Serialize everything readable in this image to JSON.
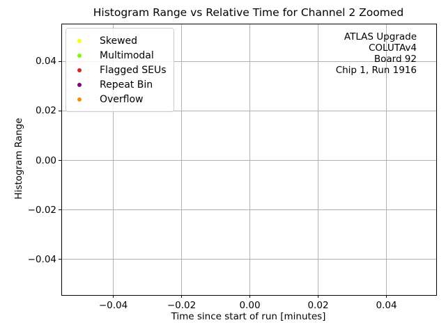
{
  "figure": {
    "title": "Histogram Range vs Relative Time for Channel 2 Zoomed",
    "xlabel": "Time since start of run [minutes]",
    "ylabel": "Histogram Range",
    "annotation": {
      "lines": [
        "ATLAS Upgrade",
        "COLUTAv4",
        "Board 92",
        "Chip 1, Run 1916"
      ]
    }
  },
  "legend": {
    "position": "upper left",
    "items": [
      {
        "label": "Skewed",
        "color": "#ffff00",
        "marker": "circle-icon"
      },
      {
        "label": "Multimodal",
        "color": "#7cfc00",
        "marker": "circle-icon"
      },
      {
        "label": "Flagged SEUs",
        "color": "#d62728",
        "marker": "circle-icon"
      },
      {
        "label": "Repeat Bin",
        "color": "#800080",
        "marker": "circle-icon"
      },
      {
        "label": "Overflow",
        "color": "#ff8c00",
        "marker": "circle-icon"
      }
    ]
  },
  "chart_data": {
    "type": "scatter",
    "title": "Histogram Range vs Relative Time for Channel 2 Zoomed",
    "xlabel": "Time since start of run [minutes]",
    "ylabel": "Histogram Range",
    "xlim": [
      -0.055,
      0.055
    ],
    "ylim": [
      -0.055,
      0.055
    ],
    "x_ticks": [
      -0.04,
      -0.02,
      0.0,
      0.02,
      0.04
    ],
    "x_tick_labels": [
      "−0.04",
      "−0.02",
      "0.00",
      "0.02",
      "0.04"
    ],
    "y_ticks": [
      -0.04,
      -0.02,
      0.0,
      0.02,
      0.04
    ],
    "y_tick_labels": [
      "−0.04",
      "−0.02",
      "0.00",
      "0.02",
      "0.04"
    ],
    "grid": true,
    "grid_color": "#b0b0b0",
    "legend_position": "upper left",
    "series": [
      {
        "name": "Skewed",
        "color": "#ffff00",
        "x": [],
        "y": []
      },
      {
        "name": "Multimodal",
        "color": "#7cfc00",
        "x": [],
        "y": []
      },
      {
        "name": "Flagged SEUs",
        "color": "#d62728",
        "x": [],
        "y": []
      },
      {
        "name": "Repeat Bin",
        "color": "#800080",
        "x": [],
        "y": []
      },
      {
        "name": "Overflow",
        "color": "#ff8c00",
        "x": [],
        "y": []
      }
    ],
    "annotations": [
      "ATLAS Upgrade",
      "COLUTAv4",
      "Board 92",
      "Chip 1, Run 1916"
    ]
  }
}
